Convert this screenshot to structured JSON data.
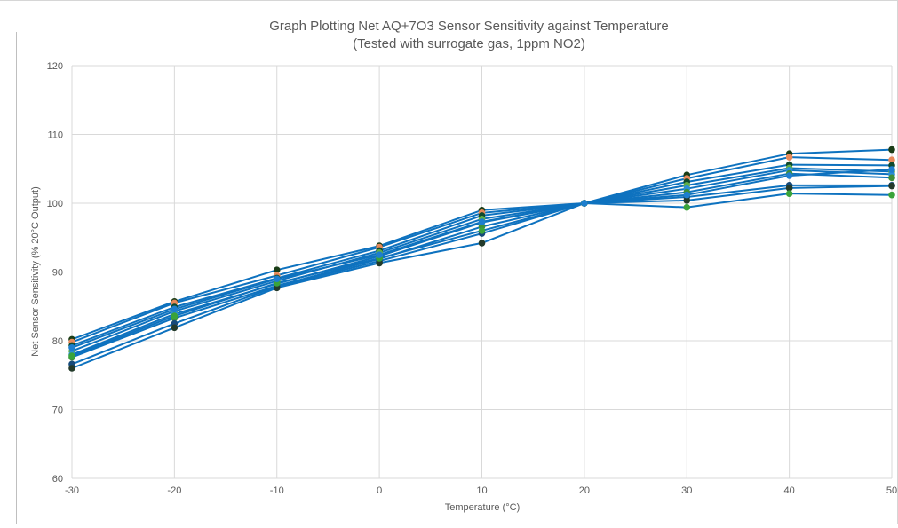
{
  "chart_data": {
    "type": "line",
    "title": "Graph Plotting Net AQ+7O3 Sensor Sensitivity against Temperature",
    "subtitle": "(Tested with surrogate gas, 1ppm NO2)",
    "xlabel": "Temperature (°C)",
    "ylabel": "Net Sensor Sensitivity (% 20°C Output)",
    "x": [
      -30,
      -20,
      -10,
      0,
      10,
      20,
      30,
      40,
      50
    ],
    "x_ticks": [
      "-30",
      "-20",
      "-10",
      "0",
      "10",
      "20",
      "30",
      "40",
      "50"
    ],
    "y_ticks": [
      "60",
      "70",
      "80",
      "90",
      "100",
      "110",
      "120"
    ],
    "xlim": [
      -30,
      50
    ],
    "ylim": [
      60,
      120
    ],
    "grid": true,
    "legend": "none",
    "line_color": "#0e72bf",
    "series": [
      {
        "values": [
          80.2,
          85.7,
          90.3,
          93.8,
          99.0,
          100,
          104.1,
          107.2,
          107.8
        ],
        "marker_color": "#1a3d17"
      },
      {
        "values": [
          79.8,
          85.5,
          89.5,
          93.6,
          98.6,
          100,
          103.6,
          106.7,
          106.3
        ],
        "marker_color": "#e8895a"
      },
      {
        "values": [
          79.3,
          84.9,
          89.1,
          93.1,
          98.2,
          100,
          103.1,
          105.6,
          105.5
        ],
        "marker_color": "#0f4a2e"
      },
      {
        "values": [
          78.5,
          84.3,
          88.7,
          92.8,
          97.7,
          100,
          102.6,
          105.1,
          104.6
        ],
        "marker_color": "#5fae46"
      },
      {
        "values": [
          78.0,
          83.9,
          88.3,
          92.3,
          97.2,
          100,
          102.1,
          104.8,
          104.2
        ],
        "marker_color": "#2b8fd6"
      },
      {
        "values": [
          77.6,
          83.3,
          88.0,
          91.9,
          96.6,
          100,
          101.6,
          104.3,
          103.7
        ],
        "marker_color": "#3e8f3a"
      },
      {
        "values": [
          76.6,
          82.5,
          87.9,
          91.6,
          95.6,
          100,
          100.9,
          102.6,
          102.6
        ],
        "marker_color": "#164a7a"
      },
      {
        "values": [
          76.0,
          81.9,
          87.7,
          91.3,
          94.2,
          100,
          100.4,
          102.2,
          102.5
        ],
        "marker_color": "#233a2a"
      },
      {
        "values": [
          77.8,
          83.6,
          88.4,
          92.0,
          96.0,
          100,
          99.4,
          101.4,
          101.2
        ],
        "marker_color": "#3aa33a"
      },
      {
        "values": [
          79.0,
          84.6,
          89.0,
          92.5,
          97.3,
          100,
          101.2,
          104.0,
          104.9
        ],
        "marker_color": "#1d7ecf"
      }
    ]
  }
}
